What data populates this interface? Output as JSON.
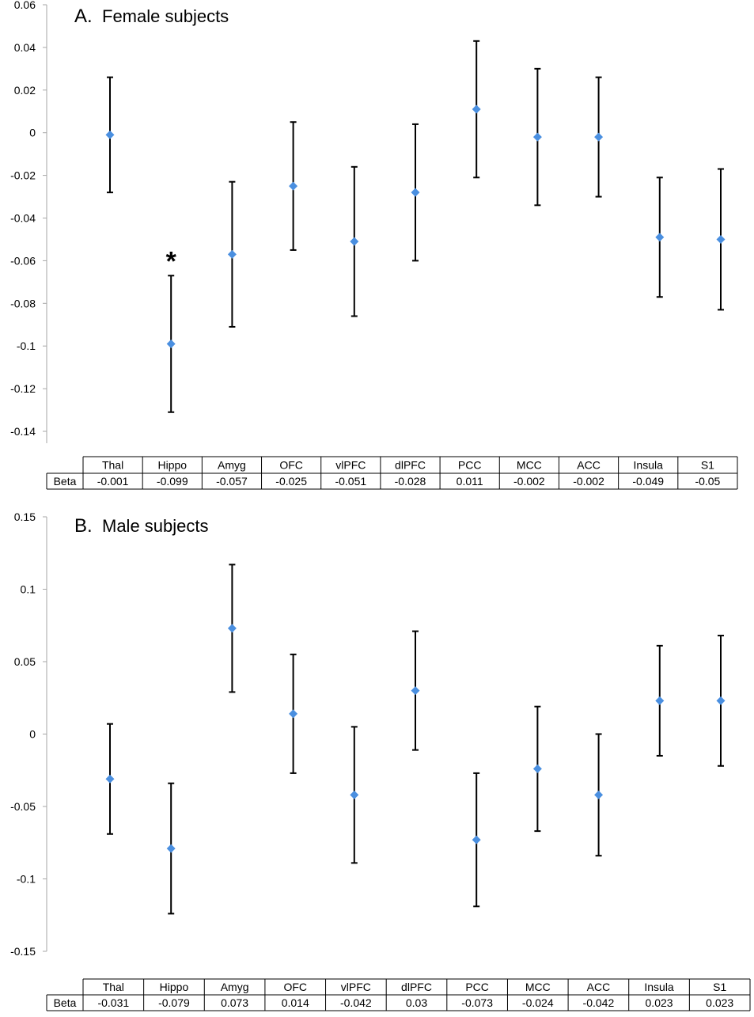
{
  "chart_data": [
    {
      "type": "scatter",
      "panel_label": "A.",
      "title": "Female subjects",
      "categories": [
        "Thal",
        "Hippo",
        "Amyg",
        "OFC",
        "vlPFC",
        "dlPFC",
        "PCC",
        "MCC",
        "ACC",
        "Insula",
        "S1"
      ],
      "values": [
        -0.001,
        -0.099,
        -0.057,
        -0.025,
        -0.051,
        -0.028,
        0.011,
        -0.002,
        -0.002,
        -0.049,
        -0.05
      ],
      "error_low": [
        -0.028,
        -0.131,
        -0.091,
        -0.055,
        -0.086,
        -0.06,
        -0.021,
        -0.034,
        -0.03,
        -0.077,
        -0.083
      ],
      "error_high": [
        0.026,
        -0.067,
        -0.023,
        0.005,
        -0.016,
        0.004,
        0.043,
        0.03,
        0.026,
        -0.021,
        -0.017
      ],
      "ylim": [
        -0.14,
        0.06
      ],
      "yticks": [
        "0.06",
        "0.04",
        "0.02",
        "0",
        "-0.02",
        "-0.04",
        "-0.06",
        "-0.08",
        "-0.1",
        "-0.12",
        "-0.14"
      ],
      "table_row_label": "Beta",
      "table_values": [
        "-0.001",
        "-0.099",
        "-0.057",
        "-0.025",
        "-0.051",
        "-0.028",
        "0.011",
        "-0.002",
        "-0.002",
        "-0.049",
        "-0.05"
      ],
      "significance_marker": {
        "category": "Hippo",
        "symbol": "*"
      },
      "marker_color": "#4a8fe0",
      "grid": false
    },
    {
      "type": "scatter",
      "panel_label": "B.",
      "title": "Male subjects",
      "categories": [
        "Thal",
        "Hippo",
        "Amyg",
        "OFC",
        "vlPFC",
        "dlPFC",
        "PCC",
        "MCC",
        "ACC",
        "Insula",
        "S1"
      ],
      "values": [
        -0.031,
        -0.079,
        0.073,
        0.014,
        -0.042,
        0.03,
        -0.073,
        -0.024,
        -0.042,
        0.023,
        0.023
      ],
      "error_low": [
        -0.069,
        -0.124,
        0.029,
        -0.027,
        -0.089,
        -0.011,
        -0.119,
        -0.067,
        -0.084,
        -0.015,
        -0.022
      ],
      "error_high": [
        0.007,
        -0.034,
        0.117,
        0.055,
        0.005,
        0.071,
        -0.027,
        0.019,
        0.0,
        0.061,
        0.068
      ],
      "ylim": [
        -0.15,
        0.15
      ],
      "yticks": [
        "0.15",
        "0.1",
        "0.05",
        "0",
        "-0.05",
        "-0.1",
        "-0.15"
      ],
      "table_row_label": "Beta",
      "table_values": [
        "-0.031",
        "-0.079",
        "0.073",
        "0.014",
        "-0.042",
        "0.03",
        "-0.073",
        "-0.024",
        "-0.042",
        "0.023",
        "0.023"
      ],
      "marker_color": "#4a8fe0",
      "grid": false
    }
  ]
}
